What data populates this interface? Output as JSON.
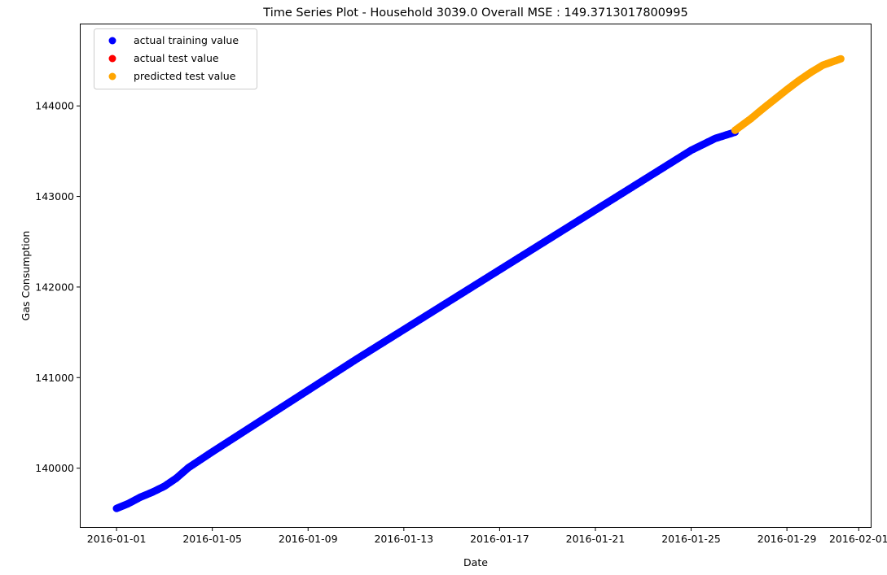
{
  "chart_data": {
    "type": "scatter",
    "title": "Time Series Plot - Household 3039.0 Overall MSE : 149.3713017800995",
    "xlabel": "Date",
    "ylabel": "Gas Consumption",
    "x_type": "date",
    "xlim": [
      "2015-12-30T12:00",
      "2016-02-01T12:00"
    ],
    "ylim": [
      139350,
      144900
    ],
    "x_ticks": [
      "2016-01-01",
      "2016-01-05",
      "2016-01-09",
      "2016-01-13",
      "2016-01-17",
      "2016-01-21",
      "2016-01-25",
      "2016-01-29",
      "2016-02-01"
    ],
    "y_ticks": [
      140000,
      141000,
      142000,
      143000,
      144000
    ],
    "grid": false,
    "legend_position": "upper-left",
    "series": [
      {
        "name": "actual training value",
        "color": "#0000ff",
        "points": [
          [
            "2016-01-01",
            139555
          ],
          [
            "2016-01-01T12:00",
            139610
          ],
          [
            "2016-01-02",
            139680
          ],
          [
            "2016-01-02T12:00",
            139735
          ],
          [
            "2016-01-03",
            139800
          ],
          [
            "2016-01-03T12:00",
            139890
          ],
          [
            "2016-01-04",
            140005
          ],
          [
            "2016-01-05",
            140180
          ],
          [
            "2016-01-06",
            140350
          ],
          [
            "2016-01-07",
            140520
          ],
          [
            "2016-01-08",
            140690
          ],
          [
            "2016-01-09",
            140860
          ],
          [
            "2016-01-10",
            141030
          ],
          [
            "2016-01-11",
            141200
          ],
          [
            "2016-01-12",
            141365
          ],
          [
            "2016-01-13",
            141530
          ],
          [
            "2016-01-14",
            141695
          ],
          [
            "2016-01-15",
            141860
          ],
          [
            "2016-01-16",
            142025
          ],
          [
            "2016-01-17",
            142190
          ],
          [
            "2016-01-18",
            142355
          ],
          [
            "2016-01-19",
            142520
          ],
          [
            "2016-01-20",
            142685
          ],
          [
            "2016-01-21",
            142850
          ],
          [
            "2016-01-22",
            143015
          ],
          [
            "2016-01-23",
            143180
          ],
          [
            "2016-01-24",
            143345
          ],
          [
            "2016-01-25",
            143510
          ],
          [
            "2016-01-26",
            143640
          ],
          [
            "2016-01-26T20:00",
            143710
          ]
        ]
      },
      {
        "name": "actual test value",
        "color": "#ff0000",
        "points": []
      },
      {
        "name": "predicted test value",
        "color": "#ffa500",
        "points": [
          [
            "2016-01-26T20:00",
            143730
          ],
          [
            "2016-01-27T12:00",
            143860
          ],
          [
            "2016-01-28",
            143970
          ],
          [
            "2016-01-28T12:00",
            144075
          ],
          [
            "2016-01-29",
            144180
          ],
          [
            "2016-01-29T12:00",
            144280
          ],
          [
            "2016-01-30",
            144370
          ],
          [
            "2016-01-30T12:00",
            144450
          ],
          [
            "2016-01-31T06:00",
            144520
          ]
        ]
      }
    ]
  }
}
